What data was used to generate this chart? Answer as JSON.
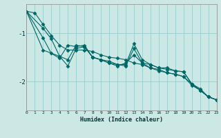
{
  "xlabel": "Humidex (Indice chaleur)",
  "bg_color": "#cce8e4",
  "grid_color": "#99cccc",
  "line_color": "#006666",
  "xlim": [
    0,
    23
  ],
  "ylim": [
    -2.6,
    -0.4
  ],
  "yticks": [
    -2,
    -1
  ],
  "ytick_labels": [
    "-2",
    "-1"
  ],
  "xticks": [
    0,
    1,
    2,
    3,
    4,
    5,
    6,
    7,
    8,
    9,
    10,
    11,
    12,
    13,
    14,
    15,
    16,
    17,
    18,
    19,
    20,
    21,
    22,
    23
  ],
  "line1_x": [
    0,
    1,
    2,
    3,
    4,
    5,
    6,
    7,
    8,
    9,
    10,
    11,
    12,
    13,
    14,
    15,
    16,
    17,
    18,
    19,
    20,
    21,
    22,
    23
  ],
  "line1_y": [
    -0.55,
    -0.58,
    -0.82,
    -1.05,
    -1.25,
    -1.35,
    -1.35,
    -1.35,
    -1.38,
    -1.45,
    -1.5,
    -1.52,
    -1.55,
    -1.62,
    -1.65,
    -1.72,
    -1.75,
    -1.82,
    -1.85,
    -1.9,
    -2.05,
    -2.15,
    -2.32,
    -2.38
  ],
  "line2_x": [
    0,
    2,
    3,
    4,
    5,
    6,
    7,
    8,
    9,
    10,
    11,
    12,
    13,
    14,
    15,
    16,
    17,
    18,
    19,
    20,
    21,
    22,
    23
  ],
  "line2_y": [
    -0.55,
    -0.9,
    -1.12,
    -1.48,
    -1.55,
    -1.25,
    -1.28,
    -1.5,
    -1.55,
    -1.62,
    -1.65,
    -1.65,
    -1.22,
    -1.55,
    -1.65,
    -1.72,
    -1.72,
    -1.78,
    -1.8,
    -2.05,
    -2.18,
    -2.32,
    -2.38
  ],
  "line3_x": [
    0,
    2,
    3,
    4,
    5,
    6,
    7,
    8,
    9,
    10,
    11,
    12,
    13,
    14,
    15,
    16,
    17,
    18,
    19,
    20,
    21,
    22,
    23
  ],
  "line3_y": [
    -0.55,
    -1.1,
    -1.42,
    -1.52,
    -1.25,
    -1.28,
    -1.25,
    -1.5,
    -1.55,
    -1.58,
    -1.65,
    -1.68,
    -1.32,
    -1.62,
    -1.72,
    -1.78,
    -1.82,
    -1.85,
    -1.9,
    -2.08,
    -2.18,
    -2.32,
    -2.38
  ],
  "line4_x": [
    0,
    2,
    4,
    5,
    6,
    7,
    8,
    9,
    10,
    11,
    12,
    13,
    14,
    15,
    16,
    17,
    18,
    19,
    20,
    21,
    22,
    23
  ],
  "line4_y": [
    -0.55,
    -1.35,
    -1.48,
    -1.68,
    -1.32,
    -1.28,
    -1.5,
    -1.55,
    -1.62,
    -1.68,
    -1.62,
    -1.45,
    -1.62,
    -1.65,
    -1.72,
    -1.75,
    -1.78,
    -1.8,
    -2.05,
    -2.18,
    -2.32,
    -2.38
  ]
}
